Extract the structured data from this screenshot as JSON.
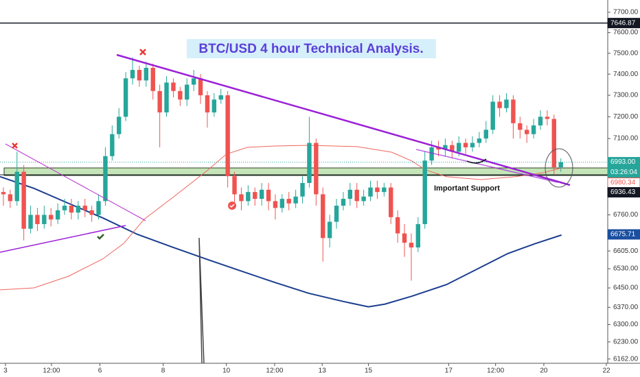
{
  "chart_data": {
    "type": "candlestick",
    "title": "BTC/USD 4 hour Technical Analysis.",
    "annotations": [
      "Important Support"
    ],
    "up_color": "#26a69a",
    "down_color": "#ef5350",
    "log": true,
    "open": [
      6860,
      6850,
      6820,
      6950,
      6700,
      6760,
      6720,
      6760,
      6740,
      6780,
      6800,
      6770,
      6800,
      6780,
      6760,
      6820,
      7020,
      7120,
      7200,
      7380,
      7420,
      7370,
      7430,
      7320,
      7220,
      7360,
      7320,
      7280,
      7350,
      7380,
      7300,
      7220,
      7280,
      7300,
      6930,
      6850,
      6820,
      6860,
      6830,
      6870,
      6820,
      6790,
      6830,
      6810,
      6840,
      6900,
      7080,
      6850,
      6660,
      6730,
      6800,
      6830,
      6870,
      6820,
      6840,
      6880,
      6860,
      6880,
      6750,
      6680,
      6640,
      6620,
      6720,
      7000,
      7060,
      7050,
      7070,
      7040,
      7080,
      7060,
      7080,
      7100,
      7140,
      7270,
      7240,
      7280,
      7170,
      7140,
      7120,
      7160,
      7200,
      7190,
      6970
    ],
    "high": [
      6880,
      6870,
      7040,
      6980,
      6800,
      6790,
      6800,
      6790,
      6810,
      6830,
      6830,
      6820,
      6830,
      6800,
      6850,
      7060,
      7160,
      7240,
      7410,
      7480,
      7440,
      7460,
      7450,
      7350,
      7390,
      7380,
      7340,
      7380,
      7420,
      7400,
      7320,
      7310,
      7330,
      7320,
      6950,
      6880,
      6890,
      6880,
      6900,
      6900,
      6850,
      6850,
      6860,
      6870,
      6930,
      7200,
      7100,
      6880,
      6760,
      6830,
      6860,
      6900,
      6900,
      6870,
      6910,
      6910,
      6900,
      6900,
      6780,
      6720,
      6680,
      6750,
      7040,
      7090,
      7090,
      7100,
      7090,
      7110,
      7100,
      7110,
      7130,
      7180,
      7300,
      7300,
      7310,
      7300,
      7200,
      7160,
      7190,
      7230,
      7230,
      7210,
      7010
    ],
    "low": [
      6800,
      6790,
      6800,
      6650,
      6680,
      6690,
      6700,
      6710,
      6720,
      6760,
      6740,
      6740,
      6750,
      6730,
      6740,
      6800,
      7000,
      7100,
      7180,
      7350,
      7340,
      7340,
      7280,
      7060,
      7200,
      7290,
      7250,
      7250,
      7320,
      7260,
      7150,
      7200,
      7260,
      6880,
      6800,
      6780,
      6800,
      6800,
      6800,
      6780,
      6740,
      6770,
      6780,
      6790,
      6810,
      6880,
      6800,
      6560,
      6620,
      6700,
      6780,
      6800,
      6790,
      6800,
      6820,
      6830,
      6840,
      6720,
      6640,
      6580,
      6480,
      6600,
      6700,
      6980,
      7020,
      7020,
      7010,
      7020,
      7030,
      7040,
      7060,
      7080,
      7120,
      7200,
      7220,
      7100,
      7100,
      7080,
      7100,
      7140,
      7160,
      6940,
      6950
    ],
    "close": [
      6850,
      6820,
      6950,
      6700,
      6760,
      6720,
      6760,
      6740,
      6780,
      6800,
      6770,
      6800,
      6780,
      6760,
      6820,
      7020,
      7120,
      7200,
      7380,
      7420,
      7370,
      7430,
      7320,
      7220,
      7360,
      7320,
      7280,
      7350,
      7380,
      7300,
      7220,
      7280,
      7300,
      6930,
      6850,
      6820,
      6860,
      6830,
      6870,
      6820,
      6790,
      6830,
      6810,
      6840,
      6900,
      7080,
      6850,
      6660,
      6730,
      6800,
      6830,
      6870,
      6820,
      6840,
      6880,
      6860,
      6880,
      6750,
      6680,
      6640,
      6620,
      6720,
      7000,
      7060,
      7050,
      7070,
      7040,
      7080,
      7060,
      7080,
      7100,
      7140,
      7270,
      7240,
      7280,
      7170,
      7140,
      7120,
      7160,
      7200,
      7190,
      6970,
      6993
    ],
    "overlays": [
      {
        "color": "#1a3d8f",
        "x": [
          -0.5,
          4.5,
          9.6,
          14.6,
          19.7,
          24.7,
          29.8,
          34.8,
          39.9,
          44.9,
          50,
          53.7,
          56.1,
          60.1,
          65.2,
          70.2,
          74.2,
          78.3,
          82.1
        ],
        "values": [
          6928,
          6876,
          6810,
          6747,
          6676,
          6623,
          6571,
          6522,
          6473,
          6428,
          6394,
          6372,
          6383,
          6416,
          6464,
          6536,
          6594,
          6637,
          6673
        ]
      },
      {
        "color": "#f0645c",
        "x": [
          -0.5,
          4.5,
          9.6,
          14.6,
          17.7,
          20.7,
          24.7,
          29.8,
          32.8,
          35.9,
          39.9,
          44.9,
          52,
          57.1,
          60.1,
          62.1,
          65.2,
          70.2,
          75.3,
          79.3,
          82.1
        ],
        "values": [
          6442,
          6450,
          6499,
          6571,
          6637,
          6741,
          6831,
          6951,
          7029,
          7060,
          7066,
          7069,
          7063,
          7038,
          6998,
          6958,
          6928,
          6915,
          6928,
          6945,
          6967
        ]
      }
    ],
    "price_labels": [
      {
        "value": 7646.87,
        "label": "7646.87",
        "color": "#131722"
      },
      {
        "value": 6993,
        "label": "6993.00",
        "color": "#26a69a"
      },
      {
        "value": 6980.34,
        "label": "6980.34",
        "color": "#ef5350"
      },
      {
        "value": 6936.43,
        "label": "6936.43",
        "color": "#131722"
      },
      {
        "value": 6675.71,
        "label": "6675.71",
        "color": "#1a4fa0"
      }
    ],
    "countdown": "03:26:04",
    "ylim": [
      6145,
      7761
    ],
    "yticks": [
      {
        "value": 7700,
        "label": "7700.00"
      },
      {
        "value": 7600,
        "label": "7600.00"
      },
      {
        "value": 7500,
        "label": "7500.00"
      },
      {
        "value": 7400,
        "label": "7400.00"
      },
      {
        "value": 7300,
        "label": "7300.00"
      },
      {
        "value": 7200,
        "label": "7200.00"
      },
      {
        "value": 7100,
        "label": "7100.00"
      },
      {
        "value": 6760,
        "label": "6760.00"
      },
      {
        "value": 6605,
        "label": "6605.00"
      },
      {
        "value": 6530,
        "label": "6530.00"
      },
      {
        "value": 6450,
        "label": "6450.00"
      },
      {
        "value": 6370,
        "label": "6370.00"
      },
      {
        "value": 6300,
        "label": "6300.00"
      },
      {
        "value": 6230,
        "label": "6230.00"
      },
      {
        "value": 6162,
        "label": "6162.00"
      }
    ],
    "xlim": [
      -0.5,
      88.9
    ],
    "xticks": [
      {
        "value": 0.3,
        "label": "3"
      },
      {
        "value": 7.07,
        "label": "12:00"
      },
      {
        "value": 14.2,
        "label": "6"
      },
      {
        "value": 23.5,
        "label": "8"
      },
      {
        "value": 32.8,
        "label": "10"
      },
      {
        "value": 39.9,
        "label": "12:00"
      },
      {
        "value": 46.9,
        "label": "13"
      },
      {
        "value": 53.7,
        "label": "15"
      },
      {
        "value": 65.5,
        "label": "17"
      },
      {
        "value": 72.4,
        "label": "12:00"
      },
      {
        "value": 79.5,
        "label": "20"
      },
      {
        "value": 88.7,
        "label": "22"
      }
    ]
  }
}
